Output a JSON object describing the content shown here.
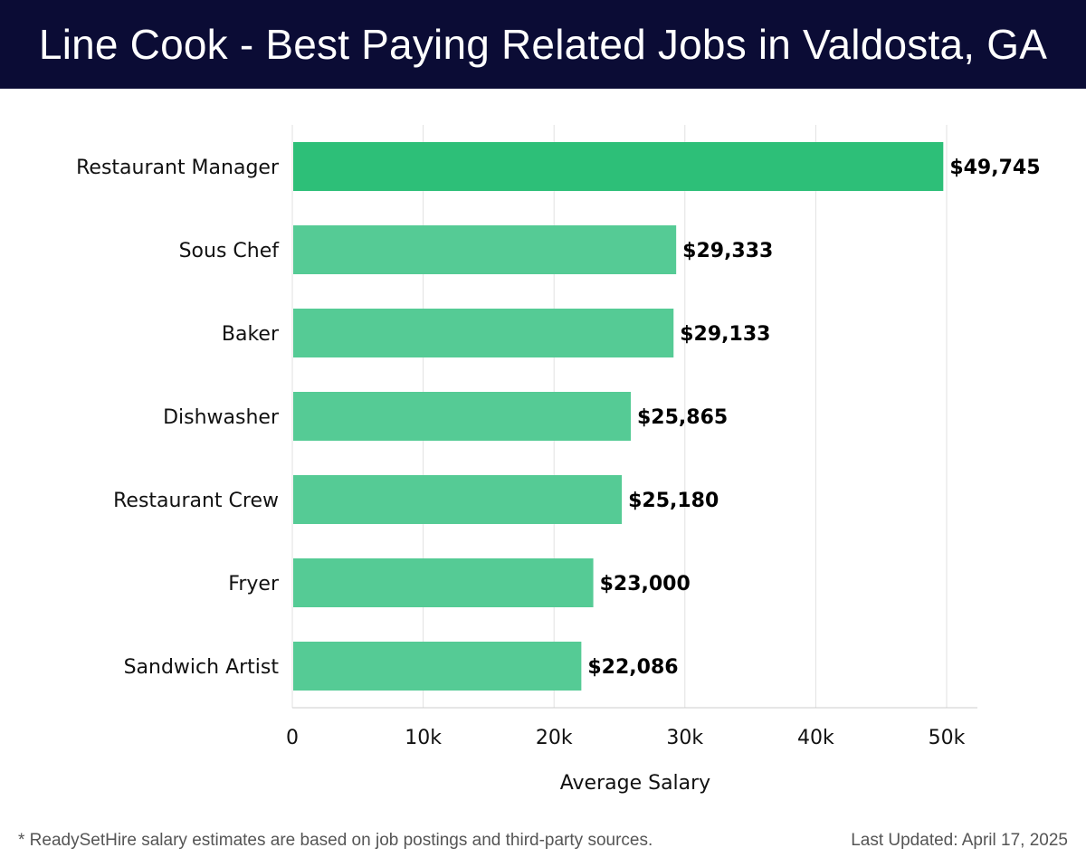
{
  "header": {
    "title": "Line Cook - Best Paying Related Jobs in Valdosta, GA"
  },
  "chart_data": {
    "type": "bar",
    "orientation": "horizontal",
    "title": "Line Cook - Best Paying Related Jobs in Valdosta, GA",
    "xlabel": "Average Salary",
    "ylabel": "",
    "categories": [
      "Restaurant Manager",
      "Sous Chef",
      "Baker",
      "Dishwasher",
      "Restaurant Crew",
      "Fryer",
      "Sandwich Artist"
    ],
    "values": [
      49745,
      29333,
      29133,
      25865,
      25180,
      23000,
      22086
    ],
    "value_labels": [
      "$49,745",
      "$29,333",
      "$29,133",
      "$25,865",
      "$25,180",
      "$23,000",
      "$22,086"
    ],
    "xlim": [
      0,
      52500
    ],
    "xticks": [
      0,
      10000,
      20000,
      30000,
      40000,
      50000
    ],
    "xtick_labels": [
      "0",
      "10k",
      "20k",
      "30k",
      "40k",
      "50k"
    ],
    "grid": true,
    "colors": {
      "highlight": "#2dbf78",
      "bar": "#55cb95",
      "grid": "#e2e2e2",
      "axis": "#cccccc",
      "text": "#111111",
      "header_bg": "#0b0c35"
    }
  },
  "footer": {
    "note": "* ReadySetHire salary estimates are based on job postings and third-party sources.",
    "updated": "Last Updated: April 17, 2025"
  }
}
